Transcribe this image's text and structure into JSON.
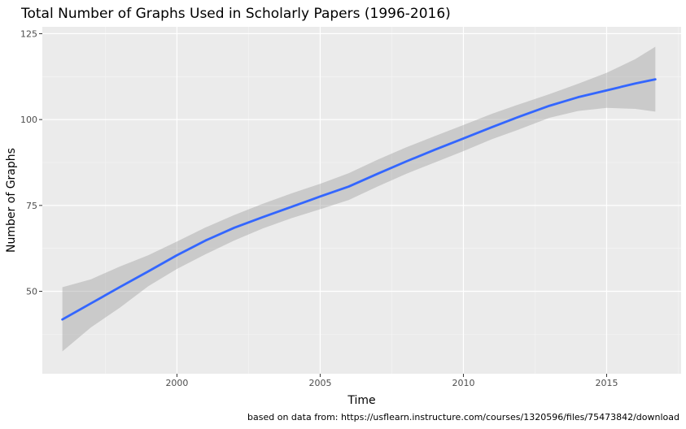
{
  "chart_data": {
    "type": "line",
    "title": "Total Number of Graphs Used in Scholarly Papers (1996-2016)",
    "xlabel": "Time",
    "ylabel": "Number of Graphs",
    "caption": "based on data from: https://usflearn.instructure.com/courses/1320596/files/75473842/download",
    "xlim": [
      1995.3,
      2017.6
    ],
    "ylim": [
      26,
      127
    ],
    "x_ticks": [
      2000,
      2005,
      2010,
      2015
    ],
    "x_minor_ticks": [
      1997.5,
      2002.5,
      2007.5,
      2012.5,
      2017.5
    ],
    "y_ticks": [
      50,
      75,
      100,
      125
    ],
    "y_minor_ticks": [
      37.5,
      62.5,
      87.5,
      112.5
    ],
    "x_tick_labels": [
      "2000",
      "2005",
      "2010",
      "2015"
    ],
    "y_tick_labels": [
      "50",
      "75",
      "100",
      "125"
    ],
    "grid": true,
    "series": [
      {
        "x": [
          1996.0,
          1997.0,
          1998.0,
          1999.0,
          2000.0,
          2001.0,
          2002.0,
          2003.0,
          2004.0,
          2005.0,
          2006.0,
          2007.0,
          2008.0,
          2009.0,
          2010.0,
          2011.0,
          2012.0,
          2013.0,
          2014.0,
          2015.0,
          2016.0,
          2016.7
        ],
        "y": [
          41.8,
          46.5,
          51.2,
          55.8,
          60.5,
          64.8,
          68.5,
          71.6,
          74.6,
          77.6,
          80.5,
          84.2,
          87.8,
          91.2,
          94.5,
          97.8,
          101.0,
          104.0,
          106.5,
          108.5,
          110.5,
          111.7
        ],
        "lower": [
          32.5,
          39.5,
          45.2,
          51.5,
          56.5,
          60.8,
          64.8,
          68.3,
          71.3,
          73.9,
          76.6,
          80.5,
          84.2,
          87.5,
          90.8,
          94.3,
          97.3,
          100.5,
          102.5,
          103.4,
          103.1,
          102.3
        ],
        "upper": [
          51.2,
          53.5,
          57.2,
          60.5,
          64.5,
          68.6,
          72.2,
          75.5,
          78.5,
          81.3,
          84.4,
          88.3,
          91.9,
          95.2,
          98.4,
          101.7,
          104.6,
          107.4,
          110.4,
          113.6,
          117.6,
          121.2
        ],
        "color": "#3366ff",
        "band_color": "#999999"
      }
    ]
  },
  "colors": {
    "panel_bg": "#ebebeb",
    "grid_major": "#ffffff",
    "grid_minor": "#f5f5f5",
    "line": "#3366ff",
    "band": "#999999"
  }
}
